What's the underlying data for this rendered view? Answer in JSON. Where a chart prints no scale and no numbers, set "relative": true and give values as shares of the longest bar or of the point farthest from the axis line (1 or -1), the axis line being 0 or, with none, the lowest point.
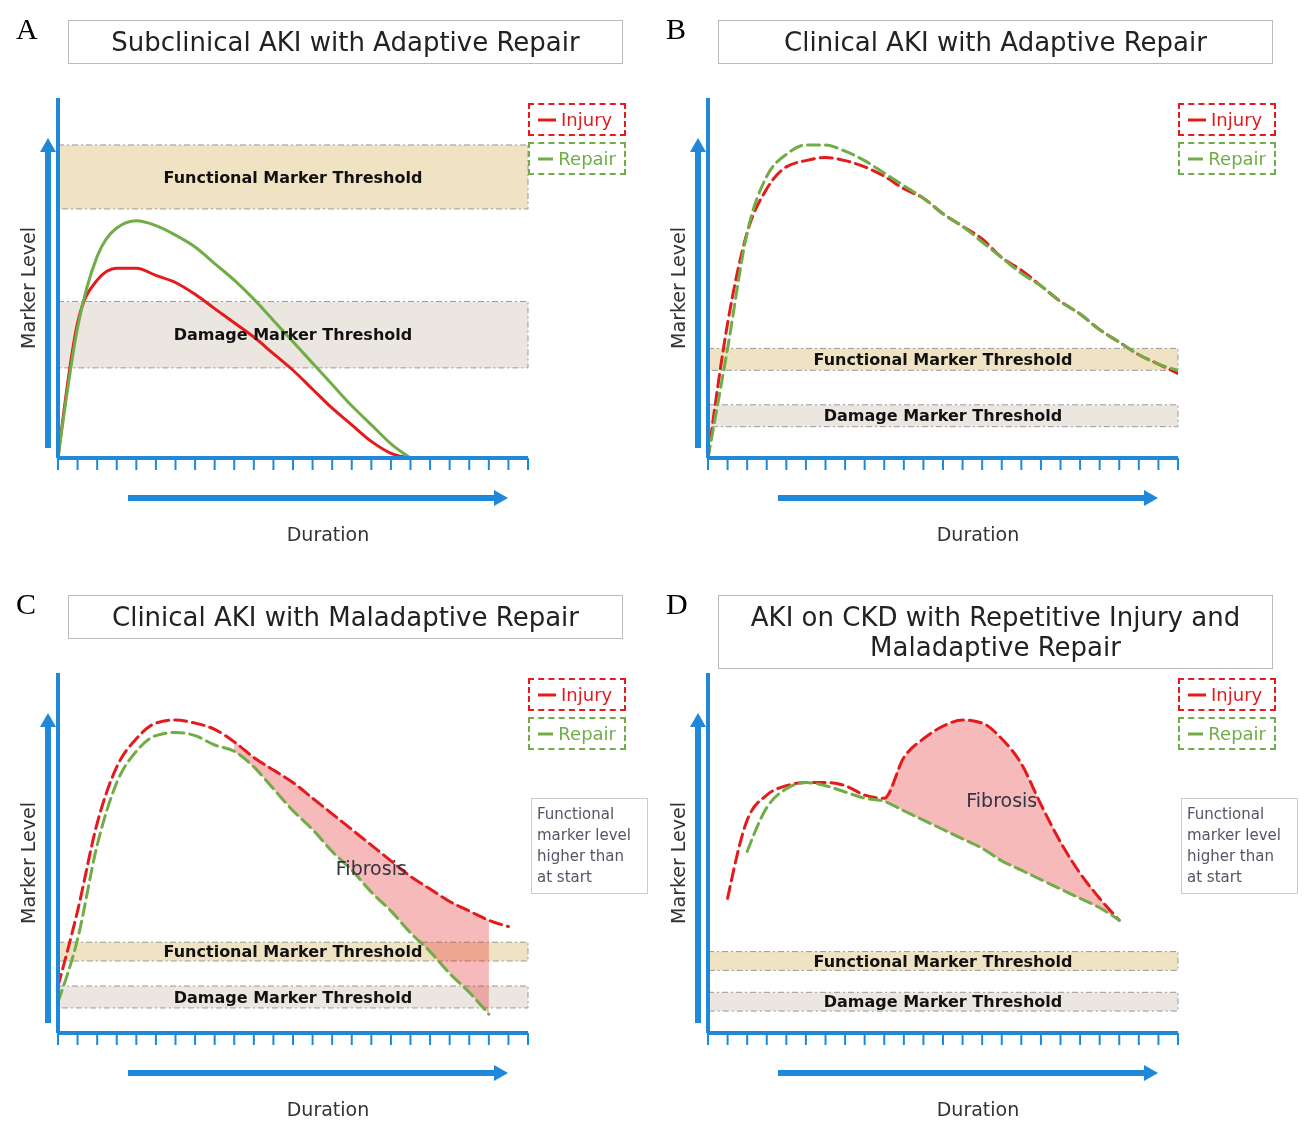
{
  "chart_data": [
    {
      "type": "line",
      "title": "Subclinical AKI with Adaptive Repair",
      "xlabel": "Duration",
      "ylabel": "Marker Level",
      "relative": true,
      "legend": "top right",
      "marker": "none",
      "line_style": "solid",
      "categories": [
        null,
        null,
        null,
        null,
        null,
        null,
        null,
        null,
        null,
        null,
        null,
        null,
        null,
        null,
        null,
        null,
        null,
        null,
        null,
        null,
        null,
        null,
        null,
        null,
        null
      ],
      "series": [
        {
          "name": "Injury",
          "color": "#e41a1c",
          "values": [
            0,
            0.57,
            0.75,
            0.8,
            0.8,
            0.77,
            0.74,
            0.69,
            0.63,
            0.57,
            0.51,
            0.44,
            0.37,
            0.29,
            0.21,
            0.14,
            0.07,
            0.02,
            0,
            null,
            null,
            null,
            null,
            null,
            null
          ]
        },
        {
          "name": "Repair",
          "color": "#70ad47",
          "values": [
            0,
            0.55,
            0.85,
            0.97,
            1,
            0.98,
            0.94,
            0.89,
            0.82,
            0.75,
            0.67,
            0.58,
            0.49,
            0.4,
            0.31,
            0.22,
            0.14,
            0.06,
            0,
            null,
            null,
            null,
            null,
            null,
            null
          ]
        }
      ],
      "bands": [
        {
          "axis": "y",
          "from": 1.05,
          "to": 1.32,
          "label": "Functional Marker Threshold",
          "color": "#efe3c4"
        },
        {
          "axis": "y",
          "from": 0.38,
          "to": 0.66,
          "label": "Damage Marker Threshold",
          "color": "#ece6e1"
        }
      ],
      "annotations": [
        "A"
      ]
    },
    {
      "type": "line",
      "title": "Clinical AKI with Adaptive Repair",
      "xlabel": "Duration",
      "ylabel": "Marker Level",
      "relative": true,
      "legend": "top right",
      "marker": "none",
      "line_style": "dashed",
      "categories": [
        null,
        null,
        null,
        null,
        null,
        null,
        null,
        null,
        null,
        null,
        null,
        null,
        null,
        null,
        null,
        null,
        null,
        null,
        null,
        null,
        null,
        null,
        null,
        null,
        null
      ],
      "series": [
        {
          "name": "Injury",
          "color": "#e41a1c",
          "values": [
            0,
            0.43,
            0.72,
            0.86,
            0.93,
            0.95,
            0.96,
            0.95,
            0.93,
            0.9,
            0.86,
            0.83,
            0.78,
            0.74,
            0.7,
            0.64,
            0.6,
            0.55,
            0.5,
            0.46,
            0.41,
            0.37,
            0.33,
            0.3,
            0.27
          ]
        },
        {
          "name": "Repair",
          "color": "#70ad47",
          "values": [
            0,
            0.35,
            0.72,
            0.9,
            0.97,
            1,
            1,
            0.98,
            0.95,
            0.91,
            0.87,
            0.83,
            0.78,
            0.74,
            0.69,
            0.64,
            0.59,
            0.55,
            0.5,
            0.46,
            0.41,
            0.37,
            0.33,
            0.3,
            0.28
          ]
        }
      ],
      "bands": [
        {
          "axis": "y",
          "from": 0.28,
          "to": 0.35,
          "label": "Functional Marker Threshold",
          "color": "#efe3c4"
        },
        {
          "axis": "y",
          "from": 0.1,
          "to": 0.17,
          "label": "Damage Marker Threshold",
          "color": "#ece6e1"
        }
      ],
      "annotations": [
        "B"
      ]
    },
    {
      "type": "line",
      "title": "Clinical AKI with Maladaptive Repair",
      "xlabel": "Duration",
      "ylabel": "Marker Level",
      "relative": true,
      "legend": "top right",
      "marker": "none",
      "line_style": "dashed",
      "categories": [
        null,
        null,
        null,
        null,
        null,
        null,
        null,
        null,
        null,
        null,
        null,
        null,
        null,
        null,
        null,
        null,
        null,
        null,
        null,
        null,
        null,
        null,
        null,
        null,
        null
      ],
      "series": [
        {
          "name": "Injury",
          "color": "#e41a1c",
          "values": [
            0.15,
            0.39,
            0.67,
            0.85,
            0.94,
            0.99,
            1,
            0.99,
            0.97,
            0.93,
            0.88,
            0.84,
            0.8,
            0.75,
            0.7,
            0.65,
            0.6,
            0.55,
            0.5,
            0.46,
            0.42,
            0.39,
            0.36,
            0.34,
            null
          ],
          "lower": [
            null,
            null,
            null,
            null,
            null,
            null,
            null,
            null,
            null,
            0.9,
            0.85,
            0.78,
            0.71,
            0.65,
            0.58,
            0.52,
            0.45,
            0.39,
            0.32,
            0.26,
            0.19,
            0.13,
            0.06,
            null,
            null
          ],
          "upper": [
            null,
            null,
            null,
            null,
            null,
            null,
            null,
            null,
            null,
            0.93,
            0.88,
            0.84,
            0.8,
            0.75,
            0.7,
            0.65,
            0.6,
            0.55,
            0.5,
            0.46,
            0.42,
            0.39,
            0.36,
            null,
            null
          ]
        },
        {
          "name": "Repair",
          "color": "#70ad47",
          "values": [
            0.1,
            0.3,
            0.6,
            0.8,
            0.9,
            0.95,
            0.96,
            0.95,
            0.92,
            0.9,
            0.85,
            0.78,
            0.71,
            0.65,
            0.58,
            0.52,
            0.45,
            0.39,
            0.32,
            0.26,
            0.19,
            0.13,
            0.06,
            null,
            null
          ]
        }
      ],
      "bands": [
        {
          "axis": "y",
          "from": 0.23,
          "to": 0.29,
          "label": "Functional Marker Threshold",
          "color": "#efe3c4"
        },
        {
          "axis": "y",
          "from": 0.08,
          "to": 0.15,
          "label": "Damage Marker Threshold",
          "color": "#ece6e1"
        }
      ],
      "annotations": [
        "C",
        "Functional marker level higher than at start",
        "Fibrosis"
      ]
    },
    {
      "type": "line",
      "title": "AKI on CKD with Repetitive Injury and Maladaptive Repair",
      "xlabel": "Duration",
      "ylabel": "Marker Level",
      "relative": true,
      "legend": "top right",
      "marker": "none",
      "line_style": "dashed",
      "categories": [
        null,
        null,
        null,
        null,
        null,
        null,
        null,
        null,
        null,
        null,
        null,
        null,
        null,
        null,
        null,
        null,
        null,
        null,
        null,
        null,
        null,
        null,
        null,
        null,
        null
      ],
      "series": [
        {
          "name": "Injury",
          "color": "#e41a1c",
          "values": [
            null,
            0.43,
            0.68,
            0.76,
            0.79,
            0.8,
            0.8,
            0.79,
            0.76,
            0.75,
            0.88,
            0.94,
            0.98,
            1,
            0.99,
            0.94,
            0.86,
            0.73,
            0.61,
            0.51,
            0.43,
            0.36,
            null,
            null,
            null
          ],
          "lower": [
            null,
            null,
            null,
            null,
            null,
            null,
            null,
            null,
            null,
            0.74,
            0.71,
            0.68,
            0.65,
            0.62,
            0.59,
            0.55,
            0.52,
            0.49,
            0.46,
            0.43,
            0.4,
            0.36,
            null,
            null,
            null
          ],
          "upper": [
            null,
            null,
            null,
            null,
            null,
            null,
            null,
            null,
            null,
            0.75,
            0.88,
            0.94,
            0.98,
            1,
            0.99,
            0.94,
            0.86,
            0.73,
            0.61,
            0.51,
            0.43,
            0.36,
            null,
            null,
            null
          ]
        },
        {
          "name": "Repair",
          "color": "#70ad47",
          "values": [
            null,
            null,
            0.58,
            0.72,
            0.78,
            0.8,
            0.79,
            0.77,
            0.75,
            0.74,
            0.71,
            0.68,
            0.65,
            0.62,
            0.59,
            0.55,
            0.52,
            0.49,
            0.46,
            0.43,
            0.4,
            0.36,
            null,
            null,
            null
          ]
        }
      ],
      "bands": [
        {
          "axis": "y",
          "from": 0.2,
          "to": 0.26,
          "label": "Functional Marker Threshold",
          "color": "#efe3c4"
        },
        {
          "axis": "y",
          "from": 0.07,
          "to": 0.13,
          "label": "Damage Marker Threshold",
          "color": "#ece6e1"
        }
      ],
      "annotations": [
        "D",
        "Functional marker level higher than at start",
        "Fibrosis"
      ]
    }
  ]
}
